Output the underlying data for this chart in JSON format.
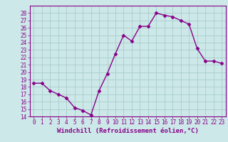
{
  "x": [
    0,
    1,
    2,
    3,
    4,
    5,
    6,
    7,
    8,
    9,
    10,
    11,
    12,
    13,
    14,
    15,
    16,
    17,
    18,
    19,
    20,
    21,
    22,
    23
  ],
  "y": [
    18.5,
    18.5,
    17.5,
    17.0,
    16.5,
    15.2,
    14.8,
    14.2,
    17.5,
    19.8,
    22.5,
    25.0,
    24.2,
    26.2,
    26.2,
    28.0,
    27.7,
    27.5,
    27.0,
    26.5,
    23.2,
    21.5,
    21.5,
    21.2
  ],
  "line_color": "#880088",
  "marker": "D",
  "markersize": 2.5,
  "linewidth": 1.0,
  "xlabel": "Windchill (Refroidissement éolien,°C)",
  "xlim": [
    -0.5,
    23.5
  ],
  "ylim": [
    14,
    29
  ],
  "yticks": [
    14,
    15,
    16,
    17,
    18,
    19,
    20,
    21,
    22,
    23,
    24,
    25,
    26,
    27,
    28
  ],
  "xticks": [
    0,
    1,
    2,
    3,
    4,
    5,
    6,
    7,
    8,
    9,
    10,
    11,
    12,
    13,
    14,
    15,
    16,
    17,
    18,
    19,
    20,
    21,
    22,
    23
  ],
  "bg_color": "#cce8e8",
  "grid_color": "#aacccc",
  "tick_color": "#880088",
  "label_color": "#880088",
  "xlabel_fontsize": 6.5,
  "tick_fontsize": 5.5
}
